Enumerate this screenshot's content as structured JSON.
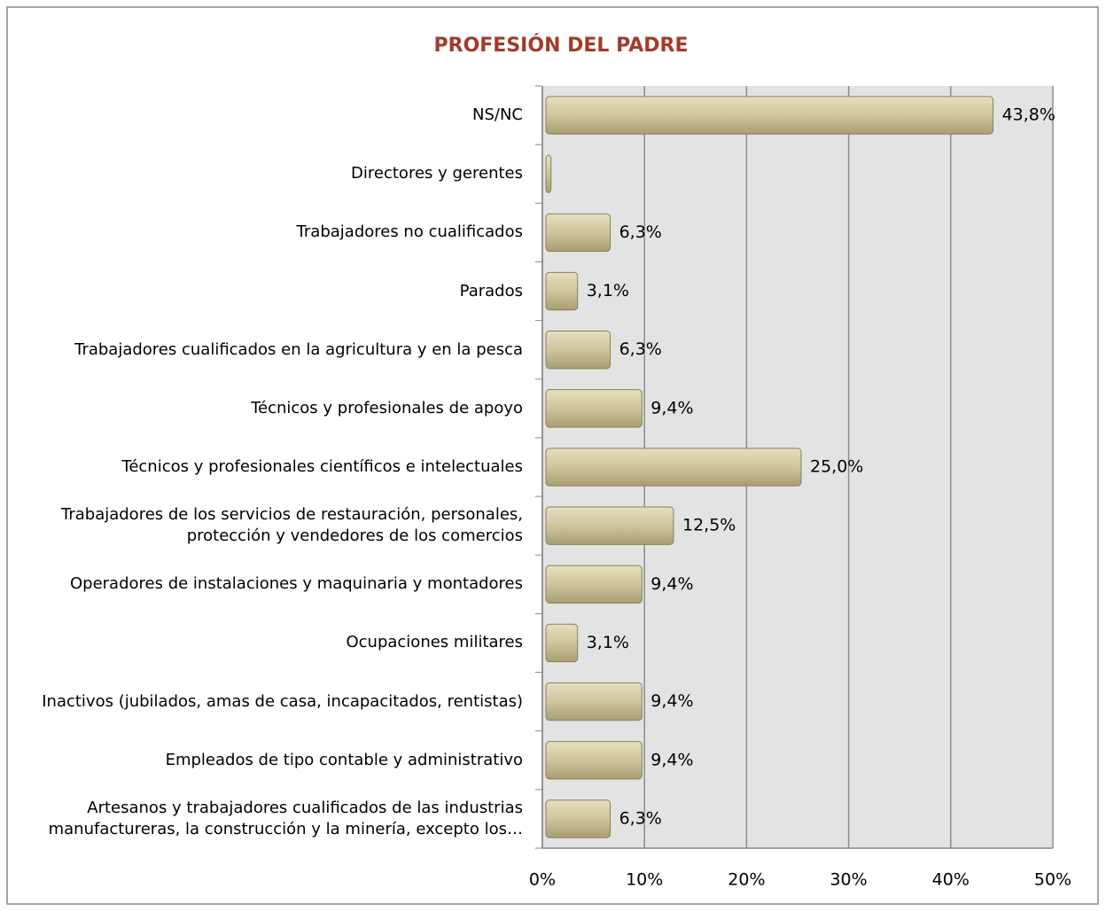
{
  "chart_data": {
    "type": "bar",
    "orientation": "horizontal",
    "title": "PROFESIÓN DEL PADRE",
    "categories": [
      "NS/NC",
      "Directores y gerentes",
      "Trabajadores no cualificados",
      "Parados",
      "Trabajadores cualificados en la agricultura y en la pesca",
      "Técnicos y profesionales de apoyo",
      "Técnicos y profesionales científicos e intelectuales",
      "Trabajadores de los servicios de restauración, personales,\nprotección y vendedores de los comercios",
      "Operadores de instalaciones y maquinaria y montadores",
      "Ocupaciones militares",
      "Inactivos (jubilados, amas de casa, incapacitados, rentistas)",
      "Empleados de tipo contable y administrativo",
      "Artesanos y trabajadores cualificados de las industrias\nmanufactureras, la construcción y la minería, excepto los…"
    ],
    "values": [
      43.8,
      0.5,
      6.3,
      3.1,
      6.3,
      9.4,
      25.0,
      12.5,
      9.4,
      3.1,
      9.4,
      9.4,
      6.3
    ],
    "value_labels": [
      "43,8%",
      null,
      "6,3%",
      "3,1%",
      "6,3%",
      "9,4%",
      "25,0%",
      "12,5%",
      "9,4%",
      "3,1%",
      "9,4%",
      "9,4%",
      "6,3%"
    ],
    "color": "#cfc59b",
    "xlim": [
      0,
      50
    ],
    "xticks": [
      {
        "value": 0,
        "label": "0%"
      },
      {
        "value": 10,
        "label": "10%"
      },
      {
        "value": 20,
        "label": "20%"
      },
      {
        "value": 30,
        "label": "30%"
      },
      {
        "value": 40,
        "label": "40%"
      },
      {
        "value": 50,
        "label": "50%"
      }
    ],
    "grid": true
  }
}
